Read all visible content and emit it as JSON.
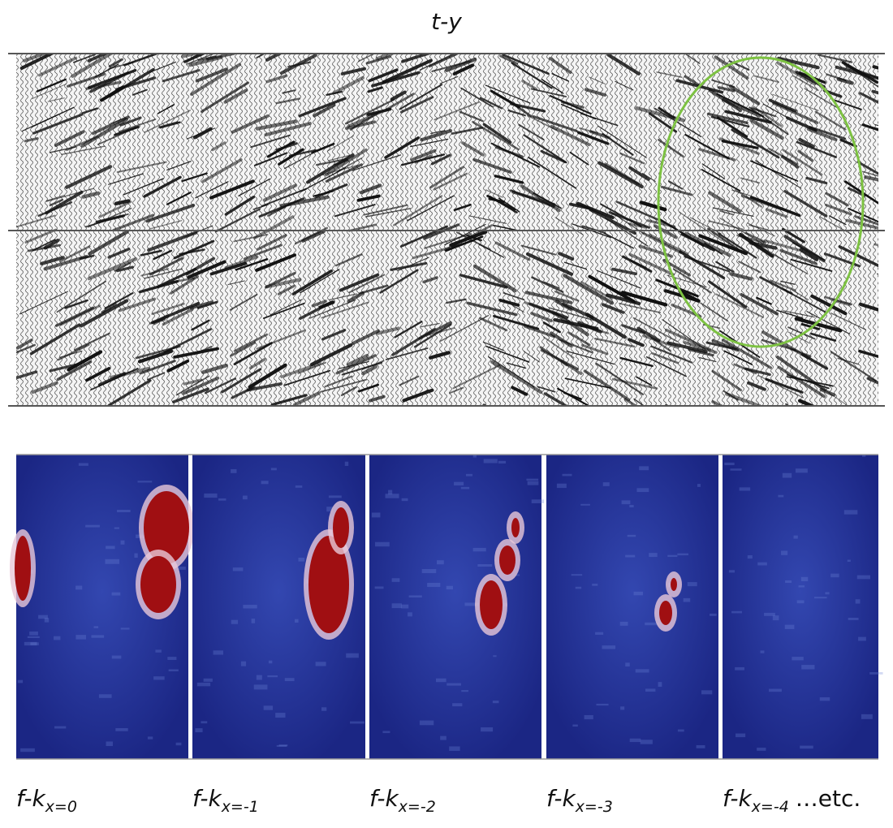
{
  "title": "t-y",
  "panels": [
    {
      "label": "f-k",
      "subscript": "x=0"
    },
    {
      "label": "f-k",
      "subscript": "x=-1"
    },
    {
      "label": "f-k",
      "subscript": "x=-2"
    },
    {
      "label": "f-k",
      "subscript": "x=-3"
    },
    {
      "label": "f-k",
      "subscript": "x=-4"
    }
  ],
  "suffix": "…etc."
}
